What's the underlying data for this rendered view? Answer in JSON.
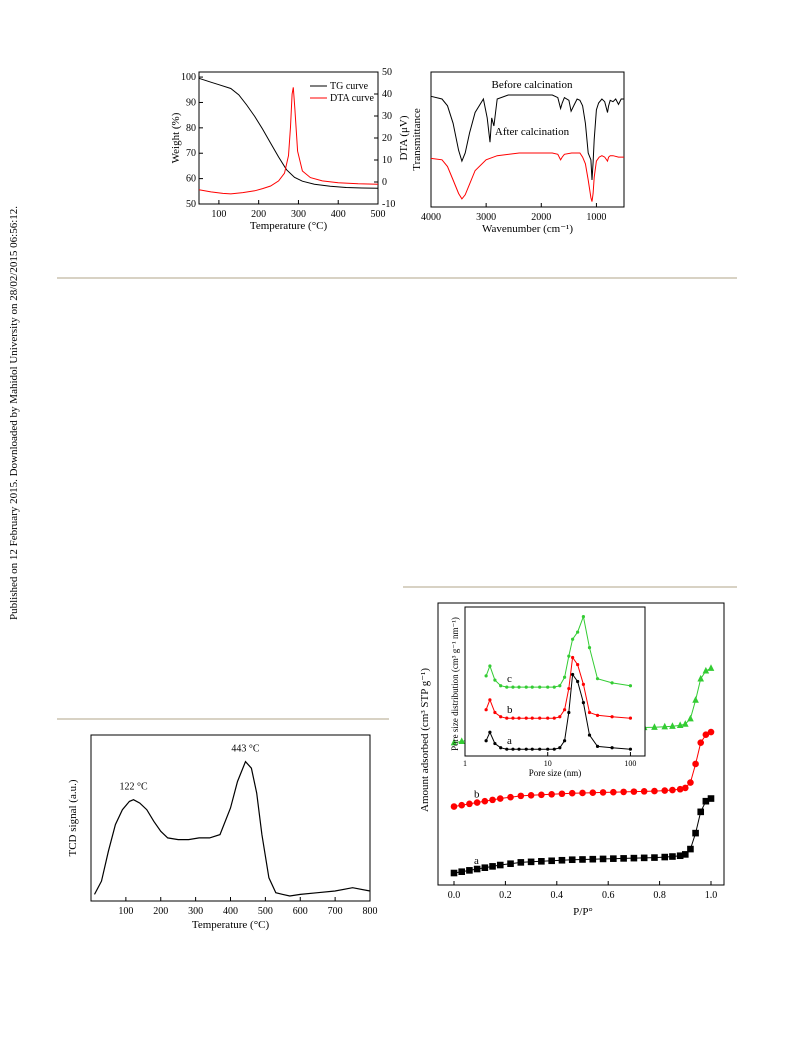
{
  "side_note": "Published on 12 February 2015. Downloaded by Mahidol University on 28/02/2015 06:56:12.",
  "colors": {
    "black": "#000000",
    "red": "#ff0000",
    "green": "#33cc33",
    "rule": "#d8d2c4"
  },
  "chart_data": [
    {
      "id": "tg-dta",
      "type": "line",
      "xlabel": "Temperature (°C)",
      "ylabel": "Weight (%)",
      "y2label": "DTA (μV)",
      "xlim": [
        50,
        500
      ],
      "ylim": [
        50,
        102
      ],
      "y2lim": [
        -10,
        50
      ],
      "xticks": [
        100,
        200,
        300,
        400,
        500
      ],
      "yticks": [
        50,
        60,
        70,
        80,
        90,
        100
      ],
      "y2ticks": [
        -10,
        0,
        10,
        20,
        30,
        40,
        50
      ],
      "y2ticklabels": [
        "-10",
        "0",
        "10",
        "20",
        "30",
        "40",
        "50"
      ],
      "legend_position": "top-right",
      "series": [
        {
          "name": "TG curve",
          "color": "#000000",
          "axis": "y",
          "x": [
            50,
            80,
            100,
            130,
            150,
            170,
            190,
            210,
            230,
            250,
            270,
            290,
            310,
            340,
            380,
            420,
            460,
            500
          ],
          "y": [
            99.5,
            98,
            97,
            95.5,
            93,
            89,
            84.5,
            79.5,
            74,
            68.5,
            63.5,
            60.5,
            59,
            57.8,
            57,
            56.5,
            56.3,
            56.2
          ]
        },
        {
          "name": "DTA curve",
          "color": "#ff0000",
          "axis": "y2",
          "x": [
            50,
            80,
            110,
            130,
            160,
            190,
            210,
            230,
            250,
            265,
            275,
            280,
            284,
            287,
            291,
            298,
            310,
            330,
            360,
            400,
            450,
            500
          ],
          "y": [
            -3.5,
            -4.5,
            -5.2,
            -5.4,
            -4.8,
            -4,
            -3,
            -1.8,
            0.5,
            4,
            12,
            25,
            40,
            43,
            33,
            14,
            5,
            2,
            0.5,
            -0.3,
            -0.8,
            -1
          ]
        }
      ]
    },
    {
      "id": "ftir",
      "type": "line",
      "xlabel": "Wavenumber (cm⁻¹)",
      "ylabel": "Transmittance",
      "xlim": [
        4000,
        500
      ],
      "ylim": [
        0,
        1
      ],
      "xticks": [
        4000,
        3000,
        2000,
        1000
      ],
      "series": [
        {
          "name": "Before calcination",
          "color": "#000000",
          "x": [
            4000,
            3800,
            3700,
            3600,
            3500,
            3440,
            3380,
            3300,
            3200,
            3050,
            2980,
            2930,
            2900,
            2860,
            2800,
            2600,
            2200,
            1800,
            1700,
            1650,
            1620,
            1580,
            1500,
            1460,
            1400,
            1350,
            1300,
            1250,
            1200,
            1150,
            1100,
            1080,
            1060,
            1040,
            1000,
            960,
            900,
            850,
            800,
            780,
            750,
            700,
            650,
            600,
            550,
            500
          ],
          "y": [
            0.82,
            0.8,
            0.75,
            0.62,
            0.42,
            0.34,
            0.4,
            0.55,
            0.7,
            0.8,
            0.66,
            0.48,
            0.66,
            0.6,
            0.8,
            0.83,
            0.83,
            0.83,
            0.81,
            0.73,
            0.77,
            0.81,
            0.79,
            0.71,
            0.76,
            0.8,
            0.79,
            0.75,
            0.62,
            0.4,
            0.35,
            0.2,
            0.33,
            0.5,
            0.72,
            0.77,
            0.8,
            0.78,
            0.7,
            0.75,
            0.79,
            0.78,
            0.8,
            0.76,
            0.8,
            0.8
          ]
        },
        {
          "name": "After calcination",
          "color": "#ff0000",
          "x": [
            4000,
            3800,
            3700,
            3600,
            3500,
            3440,
            3380,
            3300,
            3200,
            3000,
            2800,
            2400,
            2000,
            1800,
            1700,
            1650,
            1620,
            1580,
            1450,
            1300,
            1250,
            1200,
            1150,
            1100,
            1080,
            1060,
            1040,
            1000,
            950,
            900,
            850,
            800,
            780,
            750,
            700,
            600,
            500
          ],
          "y": [
            0.36,
            0.35,
            0.3,
            0.2,
            0.1,
            0.06,
            0.09,
            0.17,
            0.27,
            0.35,
            0.38,
            0.4,
            0.4,
            0.4,
            0.39,
            0.35,
            0.37,
            0.39,
            0.4,
            0.4,
            0.37,
            0.32,
            0.2,
            0.07,
            0.04,
            0.1,
            0.22,
            0.34,
            0.37,
            0.38,
            0.37,
            0.34,
            0.37,
            0.38,
            0.38,
            0.37,
            0.37
          ]
        }
      ]
    },
    {
      "id": "tpd",
      "type": "line",
      "xlabel": "Temperature (°C)",
      "ylabel": "TCD signal (a.u.)",
      "xlim": [
        0,
        800
      ],
      "ylim": [
        0,
        1
      ],
      "xticks": [
        100,
        200,
        300,
        400,
        500,
        600,
        700,
        800
      ],
      "annotations": [
        {
          "text": "122 °C",
          "x": 122
        },
        {
          "text": "443 °C",
          "x": 443
        }
      ],
      "series": [
        {
          "name": "",
          "color": "#000000",
          "x": [
            10,
            30,
            50,
            70,
            90,
            110,
            122,
            140,
            160,
            180,
            200,
            220,
            250,
            280,
            310,
            340,
            370,
            400,
            420,
            443,
            460,
            475,
            490,
            510,
            530,
            550,
            570,
            600,
            650,
            700,
            750,
            800
          ],
          "y": [
            0.04,
            0.12,
            0.3,
            0.46,
            0.55,
            0.6,
            0.61,
            0.59,
            0.55,
            0.48,
            0.42,
            0.38,
            0.37,
            0.37,
            0.38,
            0.38,
            0.4,
            0.56,
            0.72,
            0.84,
            0.8,
            0.65,
            0.4,
            0.14,
            0.05,
            0.04,
            0.03,
            0.04,
            0.05,
            0.06,
            0.08,
            0.06
          ]
        }
      ]
    },
    {
      "id": "isotherm",
      "type": "line",
      "xlabel": "P/P°",
      "ylabel": "Amount adsorbed (cm³ STP g⁻¹)",
      "xlim": [
        0.0,
        1.0
      ],
      "ylim": [
        0,
        1
      ],
      "xticks": [
        0.0,
        0.2,
        0.4,
        0.6,
        0.8,
        1.0
      ],
      "xticklabels": [
        "0.0",
        "0.2",
        "0.4",
        "0.6",
        "0.8",
        "1.0"
      ],
      "series": [
        {
          "name": "a",
          "color": "#000000",
          "marker": "square",
          "x": [
            0.0,
            0.03,
            0.06,
            0.09,
            0.12,
            0.15,
            0.18,
            0.22,
            0.26,
            0.3,
            0.34,
            0.38,
            0.42,
            0.46,
            0.5,
            0.54,
            0.58,
            0.62,
            0.66,
            0.7,
            0.74,
            0.78,
            0.82,
            0.85,
            0.88,
            0.9,
            0.92,
            0.94,
            0.96,
            0.98,
            1.0
          ],
          "y": [
            0.03,
            0.035,
            0.04,
            0.045,
            0.05,
            0.055,
            0.06,
            0.065,
            0.07,
            0.072,
            0.074,
            0.076,
            0.078,
            0.08,
            0.081,
            0.082,
            0.083,
            0.084,
            0.085,
            0.086,
            0.087,
            0.088,
            0.09,
            0.092,
            0.095,
            0.1,
            0.12,
            0.18,
            0.26,
            0.3,
            0.31
          ]
        },
        {
          "name": "b",
          "color": "#ff0000",
          "marker": "circle",
          "x": [
            0.0,
            0.03,
            0.06,
            0.09,
            0.12,
            0.15,
            0.18,
            0.22,
            0.26,
            0.3,
            0.34,
            0.38,
            0.42,
            0.46,
            0.5,
            0.54,
            0.58,
            0.62,
            0.66,
            0.7,
            0.74,
            0.78,
            0.82,
            0.85,
            0.88,
            0.9,
            0.92,
            0.94,
            0.96,
            0.98,
            1.0
          ],
          "y": [
            0.28,
            0.285,
            0.29,
            0.295,
            0.3,
            0.305,
            0.31,
            0.315,
            0.32,
            0.322,
            0.324,
            0.326,
            0.328,
            0.33,
            0.331,
            0.332,
            0.333,
            0.334,
            0.335,
            0.336,
            0.337,
            0.338,
            0.34,
            0.342,
            0.345,
            0.35,
            0.37,
            0.44,
            0.52,
            0.55,
            0.56
          ]
        },
        {
          "name": "c",
          "color": "#33cc33",
          "marker": "triangle",
          "x": [
            0.0,
            0.03,
            0.06,
            0.09,
            0.12,
            0.15,
            0.18,
            0.22,
            0.26,
            0.3,
            0.34,
            0.38,
            0.42,
            0.46,
            0.5,
            0.54,
            0.58,
            0.62,
            0.66,
            0.7,
            0.74,
            0.78,
            0.82,
            0.85,
            0.88,
            0.9,
            0.92,
            0.94,
            0.96,
            0.98,
            1.0
          ],
          "y": [
            0.52,
            0.525,
            0.53,
            0.535,
            0.54,
            0.545,
            0.55,
            0.555,
            0.56,
            0.562,
            0.564,
            0.566,
            0.568,
            0.57,
            0.571,
            0.572,
            0.573,
            0.574,
            0.575,
            0.576,
            0.577,
            0.578,
            0.58,
            0.582,
            0.585,
            0.59,
            0.61,
            0.68,
            0.76,
            0.79,
            0.8
          ]
        }
      ],
      "inset": {
        "xlabel": "Pore size (nm)",
        "ylabel": "Pore size distribution (cm³ g⁻¹ nm⁻¹)",
        "xscale": "log",
        "xlim": [
          1,
          150
        ],
        "ylim": [
          0,
          1
        ],
        "xticks": [
          1,
          10,
          100
        ],
        "xticklabels": [
          "1",
          "10",
          "100"
        ],
        "series": [
          {
            "name": "a",
            "color": "#000000",
            "x": [
              1.8,
              2.0,
              2.3,
              2.7,
              3.2,
              3.8,
              4.5,
              5.5,
              6.5,
              8,
              10,
              12,
              14,
              16,
              18,
              20,
              23,
              27,
              32,
              40,
              60,
              100
            ],
            "y": [
              0.08,
              0.14,
              0.06,
              0.03,
              0.02,
              0.02,
              0.02,
              0.02,
              0.02,
              0.02,
              0.02,
              0.02,
              0.03,
              0.08,
              0.28,
              0.55,
              0.5,
              0.35,
              0.12,
              0.04,
              0.03,
              0.02
            ]
          },
          {
            "name": "b",
            "color": "#ff0000",
            "x": [
              1.8,
              2.0,
              2.3,
              2.7,
              3.2,
              3.8,
              4.5,
              5.5,
              6.5,
              8,
              10,
              12,
              14,
              16,
              18,
              20,
              23,
              27,
              32,
              40,
              60,
              100
            ],
            "y": [
              0.3,
              0.37,
              0.28,
              0.25,
              0.24,
              0.24,
              0.24,
              0.24,
              0.24,
              0.24,
              0.24,
              0.24,
              0.25,
              0.3,
              0.45,
              0.67,
              0.62,
              0.48,
              0.28,
              0.26,
              0.25,
              0.24
            ]
          },
          {
            "name": "c",
            "color": "#33cc33",
            "x": [
              1.8,
              2.0,
              2.3,
              2.7,
              3.2,
              3.8,
              4.5,
              5.5,
              6.5,
              8,
              10,
              12,
              14,
              16,
              18,
              20,
              23,
              27,
              32,
              40,
              60,
              100
            ],
            "y": [
              0.54,
              0.61,
              0.51,
              0.47,
              0.46,
              0.46,
              0.46,
              0.46,
              0.46,
              0.46,
              0.46,
              0.46,
              0.47,
              0.53,
              0.68,
              0.8,
              0.85,
              0.96,
              0.74,
              0.52,
              0.49,
              0.47
            ]
          }
        ]
      }
    }
  ]
}
